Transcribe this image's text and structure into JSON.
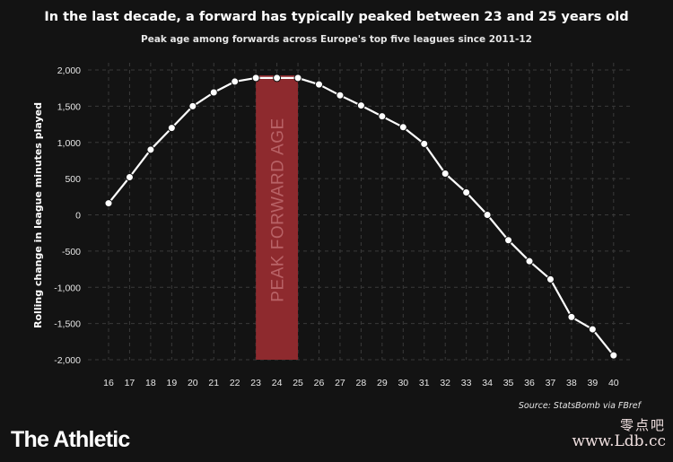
{
  "header": {
    "title": "In the last decade, a forward has typically peaked between 23 and 25 years old",
    "subtitle": "Peak age among forwards across Europe's top five leagues since 2011-12"
  },
  "footer": {
    "source": "Source: StatsBomb via FBref",
    "brand": "The Athletic",
    "watermark_top": "零点吧",
    "watermark_bottom": "www.Ldb.cc"
  },
  "colors": {
    "background": "#131313",
    "line": "#ffffff",
    "marker_fill": "#ffffff",
    "band_fill": "#8e2a2e",
    "band_text": "#b86266",
    "grid": "#3a3a3a"
  },
  "chart_data": {
    "type": "line",
    "title": "In the last decade, a forward has typically peaked between 23 and 25 years old",
    "subtitle": "Peak age among forwards across Europe's top five leagues since 2011-12",
    "xlabel": "",
    "ylabel": "Rolling change in league minutes played",
    "x": [
      16,
      17,
      18,
      19,
      20,
      21,
      22,
      23,
      24,
      25,
      26,
      27,
      28,
      29,
      30,
      31,
      32,
      33,
      34,
      35,
      36,
      37,
      38,
      39,
      40
    ],
    "series": [
      {
        "values": [
          160,
          520,
          900,
          1200,
          1500,
          1690,
          1840,
          1890,
          1890,
          1890,
          1800,
          1650,
          1510,
          1360,
          1210,
          980,
          570,
          310,
          0,
          -350,
          -640,
          -890,
          -1410,
          -1580,
          -1940
        ]
      }
    ],
    "ylim": [
      -2000,
      2000
    ],
    "yticks": [
      2000,
      1500,
      1000,
      500,
      0,
      -500,
      -1000,
      -1500,
      -2000
    ],
    "ytick_labels": [
      "2,000",
      "1,500",
      "1,000",
      "500",
      "0",
      "-500",
      "-1,000",
      "-1,500",
      "-2,000"
    ],
    "xlim": [
      16,
      40
    ],
    "grid": true,
    "highlight_band": {
      "x_range": [
        23,
        25
      ],
      "label": "PEAK FORWARD AGE"
    }
  }
}
